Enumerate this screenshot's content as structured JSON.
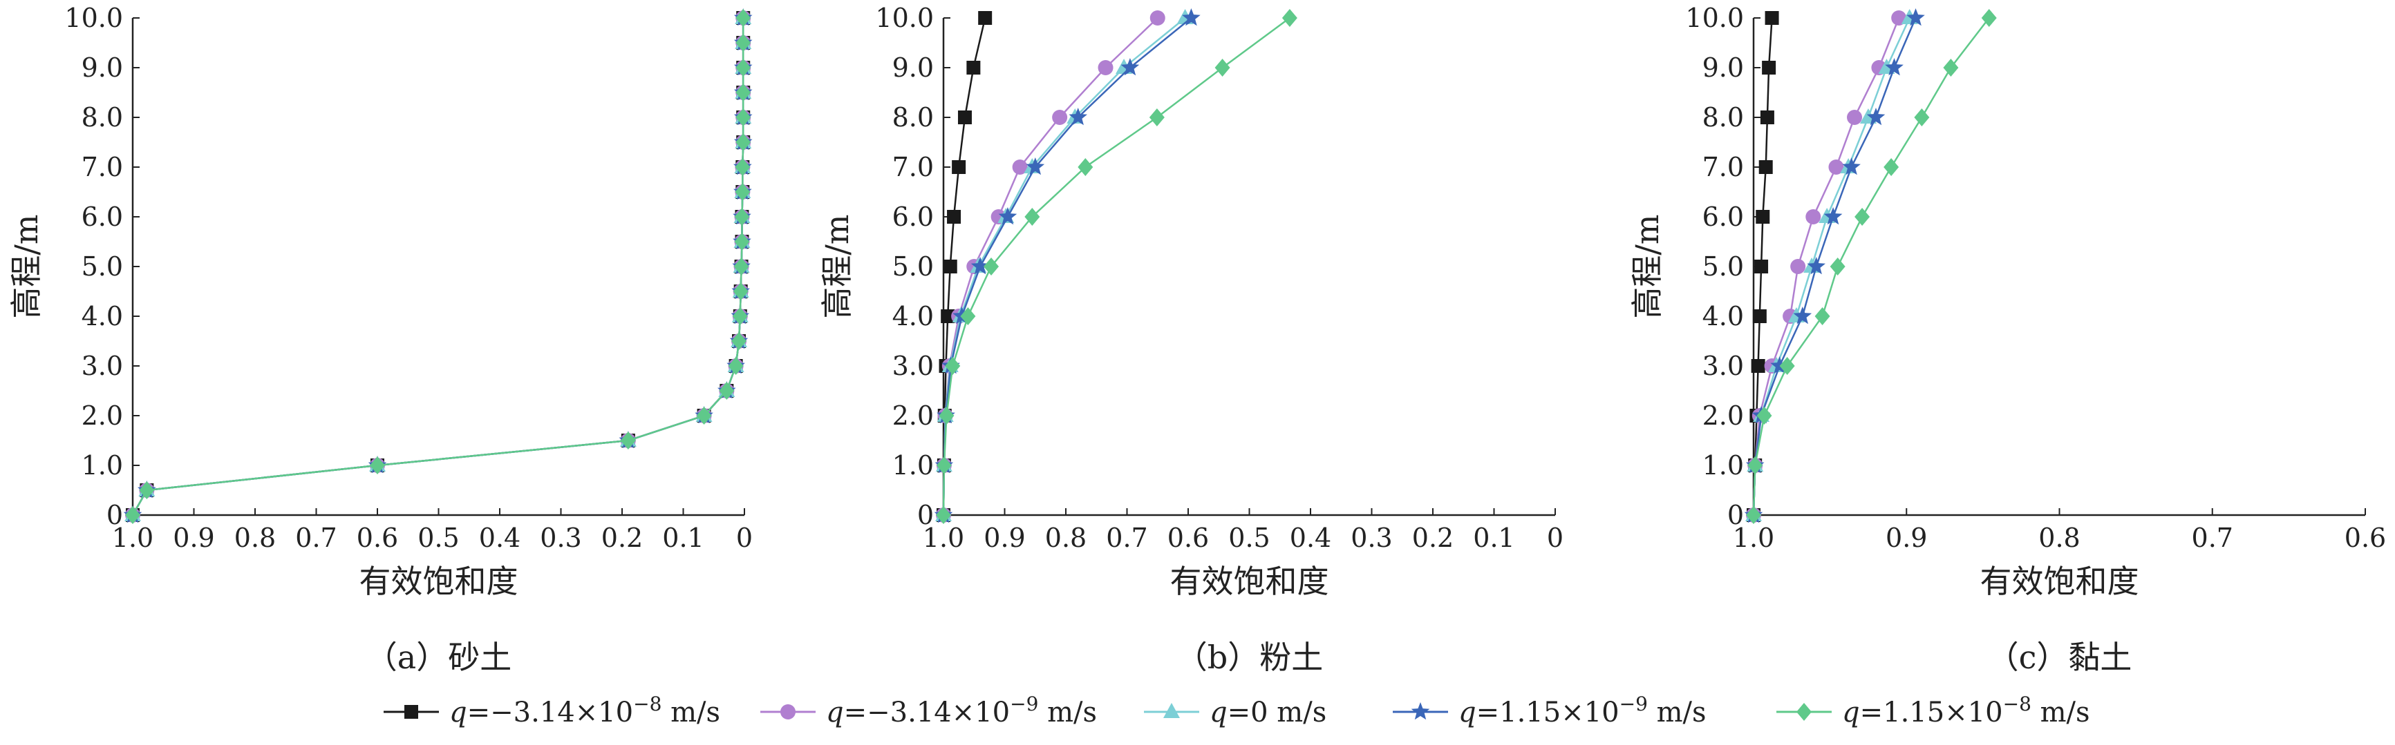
{
  "chart_data": [
    {
      "type": "line",
      "caption": "（a）砂土",
      "xlabel": "有效饱和度",
      "ylabel": "高程/m",
      "xlim": [
        1.0,
        0.0
      ],
      "ylim": [
        0,
        10.0
      ],
      "xticks": [
        "1.0",
        "0.9",
        "0.8",
        "0.7",
        "0.6",
        "0.5",
        "0.4",
        "0.3",
        "0.2",
        "0.1",
        "0"
      ],
      "yticks": [
        "0",
        "1.0",
        "2.0",
        "3.0",
        "4.0",
        "5.0",
        "6.0",
        "7.0",
        "8.0",
        "9.0",
        "10.0"
      ],
      "y": [
        0,
        0.5,
        1.0,
        1.5,
        2.0,
        2.5,
        3.0,
        3.5,
        4.0,
        4.5,
        5.0,
        5.5,
        6.0,
        6.5,
        7.0,
        7.5,
        8.0,
        8.5,
        9.0,
        9.5,
        10.0
      ],
      "series": [
        {
          "values": [
            1.0,
            0.977,
            0.6,
            0.19,
            0.066,
            0.029,
            0.014,
            0.009,
            0.007,
            0.006,
            0.005,
            0.004,
            0.004,
            0.003,
            0.003,
            0.002,
            0.002,
            0.002,
            0.002,
            0.002,
            0.002
          ]
        },
        {
          "values": [
            1.0,
            0.977,
            0.6,
            0.19,
            0.066,
            0.029,
            0.014,
            0.009,
            0.007,
            0.006,
            0.005,
            0.004,
            0.004,
            0.003,
            0.003,
            0.002,
            0.002,
            0.002,
            0.002,
            0.002,
            0.002
          ]
        },
        {
          "values": [
            1.0,
            0.977,
            0.6,
            0.19,
            0.066,
            0.029,
            0.014,
            0.009,
            0.007,
            0.006,
            0.005,
            0.004,
            0.004,
            0.003,
            0.003,
            0.002,
            0.002,
            0.002,
            0.002,
            0.002,
            0.002
          ]
        },
        {
          "values": [
            1.0,
            0.977,
            0.6,
            0.19,
            0.066,
            0.029,
            0.014,
            0.009,
            0.007,
            0.006,
            0.005,
            0.004,
            0.004,
            0.003,
            0.003,
            0.002,
            0.002,
            0.002,
            0.002,
            0.002,
            0.002
          ]
        },
        {
          "values": [
            1.0,
            0.977,
            0.6,
            0.19,
            0.066,
            0.029,
            0.014,
            0.009,
            0.007,
            0.006,
            0.005,
            0.004,
            0.004,
            0.003,
            0.003,
            0.002,
            0.002,
            0.002,
            0.002,
            0.002,
            0.002
          ]
        }
      ]
    },
    {
      "type": "line",
      "caption": "（b）粉土",
      "xlabel": "有效饱和度",
      "ylabel": "高程/m",
      "xlim": [
        1.0,
        0.0
      ],
      "ylim": [
        0,
        10.0
      ],
      "xticks": [
        "1.0",
        "0.9",
        "0.8",
        "0.7",
        "0.6",
        "0.5",
        "0.4",
        "0.3",
        "0.2",
        "0.1",
        "0"
      ],
      "yticks": [
        "0",
        "1.0",
        "2.0",
        "3.0",
        "4.0",
        "5.0",
        "6.0",
        "7.0",
        "8.0",
        "9.0",
        "10.0"
      ],
      "y": [
        0,
        1.0,
        2.0,
        3.0,
        4.0,
        5.0,
        6.0,
        7.0,
        8.0,
        9.0,
        10.0
      ],
      "series": [
        {
          "values": [
            1.0,
            0.999,
            0.998,
            0.996,
            0.993,
            0.989,
            0.983,
            0.975,
            0.965,
            0.951,
            0.932
          ]
        },
        {
          "values": [
            1.0,
            0.999,
            0.997,
            0.99,
            0.975,
            0.95,
            0.91,
            0.875,
            0.81,
            0.735,
            0.65
          ]
        },
        {
          "values": [
            1.0,
            0.999,
            0.997,
            0.989,
            0.972,
            0.943,
            0.898,
            0.855,
            0.785,
            0.705,
            0.605
          ]
        },
        {
          "values": [
            1.0,
            0.999,
            0.996,
            0.988,
            0.97,
            0.94,
            0.895,
            0.85,
            0.78,
            0.695,
            0.595
          ]
        },
        {
          "values": [
            1.0,
            0.999,
            0.995,
            0.985,
            0.96,
            0.922,
            0.855,
            0.768,
            0.651,
            0.544,
            0.434
          ]
        }
      ]
    },
    {
      "type": "line",
      "caption": "（c）黏土",
      "xlabel": "有效饱和度",
      "ylabel": "高程/m",
      "xlim": [
        1.0,
        0.6
      ],
      "ylim": [
        0,
        10.0
      ],
      "xticks": [
        "1.0",
        "0.9",
        "0.8",
        "0.7",
        "0.6"
      ],
      "yticks": [
        "0",
        "1.0",
        "2.0",
        "3.0",
        "4.0",
        "5.0",
        "6.0",
        "7.0",
        "8.0",
        "9.0",
        "10.0"
      ],
      "y": [
        0,
        1.0,
        2.0,
        3.0,
        4.0,
        5.0,
        6.0,
        7.0,
        8.0,
        9.0,
        10.0
      ],
      "series": [
        {
          "values": [
            1.0,
            0.999,
            0.998,
            0.997,
            0.996,
            0.995,
            0.994,
            0.992,
            0.991,
            0.99,
            0.988
          ]
        },
        {
          "values": [
            1.0,
            0.999,
            0.996,
            0.988,
            0.976,
            0.971,
            0.961,
            0.946,
            0.934,
            0.918,
            0.905
          ]
        },
        {
          "values": [
            1.0,
            0.999,
            0.995,
            0.985,
            0.972,
            0.962,
            0.952,
            0.938,
            0.925,
            0.913,
            0.898
          ]
        },
        {
          "values": [
            1.0,
            0.999,
            0.995,
            0.983,
            0.968,
            0.959,
            0.948,
            0.936,
            0.92,
            0.908,
            0.894
          ]
        },
        {
          "values": [
            1.0,
            0.999,
            0.993,
            0.978,
            0.955,
            0.945,
            0.929,
            0.91,
            0.89,
            0.871,
            0.846
          ]
        }
      ]
    }
  ],
  "legend": {
    "placement": "bottom",
    "items": [
      {
        "q": "q",
        "text": "=−3.14×10",
        "exp": "−8",
        "unit": " m/s",
        "color": "#1a1a1a",
        "marker": "square"
      },
      {
        "q": "q",
        "text": "=−3.14×10",
        "exp": "−9",
        "unit": " m/s",
        "color": "#b07fd0",
        "marker": "circle"
      },
      {
        "q": "q",
        "text": "=0 m/s",
        "exp": "",
        "unit": "",
        "color": "#7ccfd6",
        "marker": "triangle"
      },
      {
        "q": "q",
        "text": "=1.15×10",
        "exp": "−9",
        "unit": " m/s",
        "color": "#3a66b8",
        "marker": "star"
      },
      {
        "q": "q",
        "text": "=1.15×10",
        "exp": "−8",
        "unit": " m/s",
        "color": "#5fc98a",
        "marker": "diamond"
      }
    ]
  }
}
